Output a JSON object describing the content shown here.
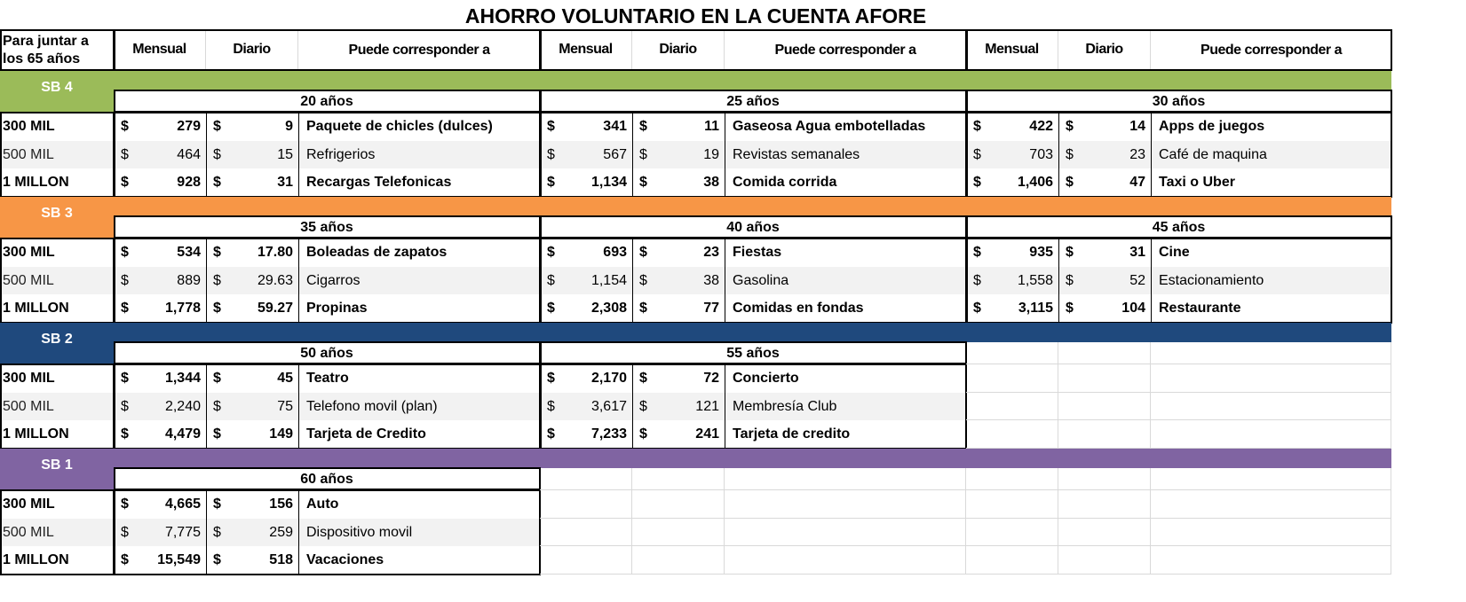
{
  "title": "AHORRO VOLUNTARIO EN LA CUENTA AFORE",
  "header": {
    "label": "Para juntar a los 65 años",
    "mensual": "Mensual",
    "diario": "Diario",
    "puede": "Puede corresponder a"
  },
  "row_labels": [
    "300 MIL",
    "500 MIL",
    "1 MILLON"
  ],
  "currency": "$",
  "sections": [
    {
      "label": "SB 4",
      "color": "#9bbb59",
      "groups": [
        {
          "years": "20 años",
          "rows": [
            {
              "mensual": "279",
              "diario": "9",
              "item": "Paquete de chicles (dulces)"
            },
            {
              "mensual": "464",
              "diario": "15",
              "item": "Refrigerios"
            },
            {
              "mensual": "928",
              "diario": "31",
              "item": "Recargas Telefonicas"
            }
          ]
        },
        {
          "years": "25 años",
          "rows": [
            {
              "mensual": "341",
              "diario": "11",
              "item": "Gaseosa Agua embotelladas"
            },
            {
              "mensual": "567",
              "diario": "19",
              "item": "Revistas semanales"
            },
            {
              "mensual": "1,134",
              "diario": "38",
              "item": "Comida corrida"
            }
          ]
        },
        {
          "years": "30 años",
          "rows": [
            {
              "mensual": "422",
              "diario": "14",
              "item": "Apps de juegos"
            },
            {
              "mensual": "703",
              "diario": "23",
              "item": "Café de maquina"
            },
            {
              "mensual": "1,406",
              "diario": "47",
              "item": "Taxi o Uber"
            }
          ]
        }
      ]
    },
    {
      "label": "SB 3",
      "color": "#f79646",
      "groups": [
        {
          "years": "35 años",
          "rows": [
            {
              "mensual": "534",
              "diario": "17.80",
              "item": "Boleadas de zapatos"
            },
            {
              "mensual": "889",
              "diario": "29.63",
              "item": "Cigarros"
            },
            {
              "mensual": "1,778",
              "diario": "59.27",
              "item": "Propinas"
            }
          ]
        },
        {
          "years": "40 años",
          "rows": [
            {
              "mensual": "693",
              "diario": "23",
              "item": "Fiestas"
            },
            {
              "mensual": "1,154",
              "diario": "38",
              "item": "Gasolina"
            },
            {
              "mensual": "2,308",
              "diario": "77",
              "item": "Comidas en fondas"
            }
          ]
        },
        {
          "years": "45 años",
          "rows": [
            {
              "mensual": "935",
              "diario": "31",
              "item": "Cine"
            },
            {
              "mensual": "1,558",
              "diario": "52",
              "item": "Estacionamiento"
            },
            {
              "mensual": "3,115",
              "diario": "104",
              "item": "Restaurante"
            }
          ]
        }
      ]
    },
    {
      "label": "SB 2",
      "color": "#1f497d",
      "groups": [
        {
          "years": "50 años",
          "rows": [
            {
              "mensual": "1,344",
              "diario": "45",
              "item": "Teatro"
            },
            {
              "mensual": "2,240",
              "diario": "75",
              "item": "Telefono movil (plan)"
            },
            {
              "mensual": "4,479",
              "diario": "149",
              "item": "Tarjeta de Credito"
            }
          ]
        },
        {
          "years": "55 años",
          "rows": [
            {
              "mensual": "2,170",
              "diario": "72",
              "item": "Concierto"
            },
            {
              "mensual": "3,617",
              "diario": "121",
              "item": "Membresía Club"
            },
            {
              "mensual": "7,233",
              "diario": "241",
              "item": "Tarjeta de credito"
            }
          ]
        }
      ]
    },
    {
      "label": "SB 1",
      "color": "#8064a2",
      "groups": [
        {
          "years": "60 años",
          "rows": [
            {
              "mensual": "4,665",
              "diario": "156",
              "item": "Auto"
            },
            {
              "mensual": "7,775",
              "diario": "259",
              "item": "Dispositivo movil"
            },
            {
              "mensual": "15,549",
              "diario": "518",
              "item": "Vacaciones"
            }
          ]
        }
      ]
    }
  ]
}
